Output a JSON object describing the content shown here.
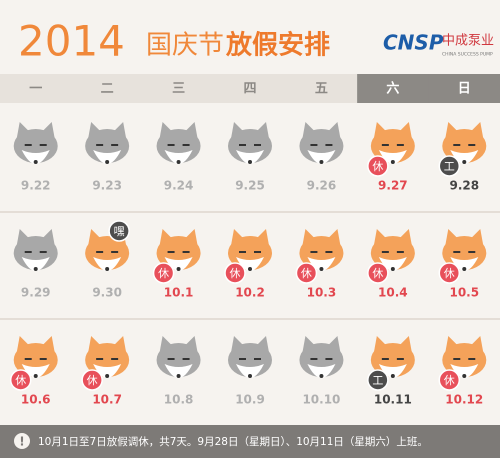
{
  "header": {
    "year": "2014",
    "holiday": "国庆节",
    "arrangement": "放假安排",
    "logo": {
      "mark": "CNSP",
      "name": "中成泵业",
      "tagline": "CHINA SUCCESS PUMP"
    }
  },
  "weekdays": [
    "一",
    "二",
    "三",
    "四",
    "五",
    "六",
    "日"
  ],
  "weeks": [
    {
      "days": [
        {
          "date": "9.22",
          "fox_color": "#a8a8a8",
          "date_color": "#b0b0b0"
        },
        {
          "date": "9.23",
          "fox_color": "#a8a8a8",
          "date_color": "#b0b0b0"
        },
        {
          "date": "9.24",
          "fox_color": "#a8a8a8",
          "date_color": "#b0b0b0"
        },
        {
          "date": "9.25",
          "fox_color": "#a8a8a8",
          "date_color": "#b0b0b0"
        },
        {
          "date": "9.26",
          "fox_color": "#a8a8a8",
          "date_color": "#b0b0b0"
        },
        {
          "date": "9.27",
          "fox_color": "#f4a25a",
          "date_color": "#e2474f",
          "badge": "休",
          "badge_color": "#e8505b"
        },
        {
          "date": "9.28",
          "fox_color": "#f4a25a",
          "date_color": "#444444",
          "badge": "工",
          "badge_color": "#4d4d4d"
        }
      ]
    },
    {
      "days": [
        {
          "date": "9.29",
          "fox_color": "#a8a8a8",
          "date_color": "#b0b0b0"
        },
        {
          "date": "9.30",
          "fox_color": "#f4a25a",
          "date_color": "#b0b0b0",
          "badge": "嘿",
          "badge_color": "#4d4d4d",
          "badge_top": true
        },
        {
          "date": "10.1",
          "fox_color": "#f4a25a",
          "date_color": "#e2474f",
          "badge": "休",
          "badge_color": "#e8505b"
        },
        {
          "date": "10.2",
          "fox_color": "#f4a25a",
          "date_color": "#e2474f",
          "badge": "休",
          "badge_color": "#e8505b"
        },
        {
          "date": "10.3",
          "fox_color": "#f4a25a",
          "date_color": "#e2474f",
          "badge": "休",
          "badge_color": "#e8505b"
        },
        {
          "date": "10.4",
          "fox_color": "#f4a25a",
          "date_color": "#e2474f",
          "badge": "休",
          "badge_color": "#e8505b"
        },
        {
          "date": "10.5",
          "fox_color": "#f4a25a",
          "date_color": "#e2474f",
          "badge": "休",
          "badge_color": "#e8505b"
        }
      ]
    },
    {
      "days": [
        {
          "date": "10.6",
          "fox_color": "#f4a25a",
          "date_color": "#e2474f",
          "badge": "休",
          "badge_color": "#e8505b"
        },
        {
          "date": "10.7",
          "fox_color": "#f4a25a",
          "date_color": "#e2474f",
          "badge": "休",
          "badge_color": "#e8505b"
        },
        {
          "date": "10.8",
          "fox_color": "#a8a8a8",
          "date_color": "#b0b0b0"
        },
        {
          "date": "10.9",
          "fox_color": "#a8a8a8",
          "date_color": "#b0b0b0"
        },
        {
          "date": "10.10",
          "fox_color": "#a8a8a8",
          "date_color": "#b0b0b0"
        },
        {
          "date": "10.11",
          "fox_color": "#f4a25a",
          "date_color": "#444444",
          "badge": "工",
          "badge_color": "#4d4d4d"
        },
        {
          "date": "10.12",
          "fox_color": "#f4a25a",
          "date_color": "#e2474f",
          "badge": "休",
          "badge_color": "#e8505b"
        }
      ]
    }
  ],
  "footer": {
    "note": "10月1日至7日放假调休，共7天。9月28日（星期日）、10月11日（星期六）上班。"
  }
}
